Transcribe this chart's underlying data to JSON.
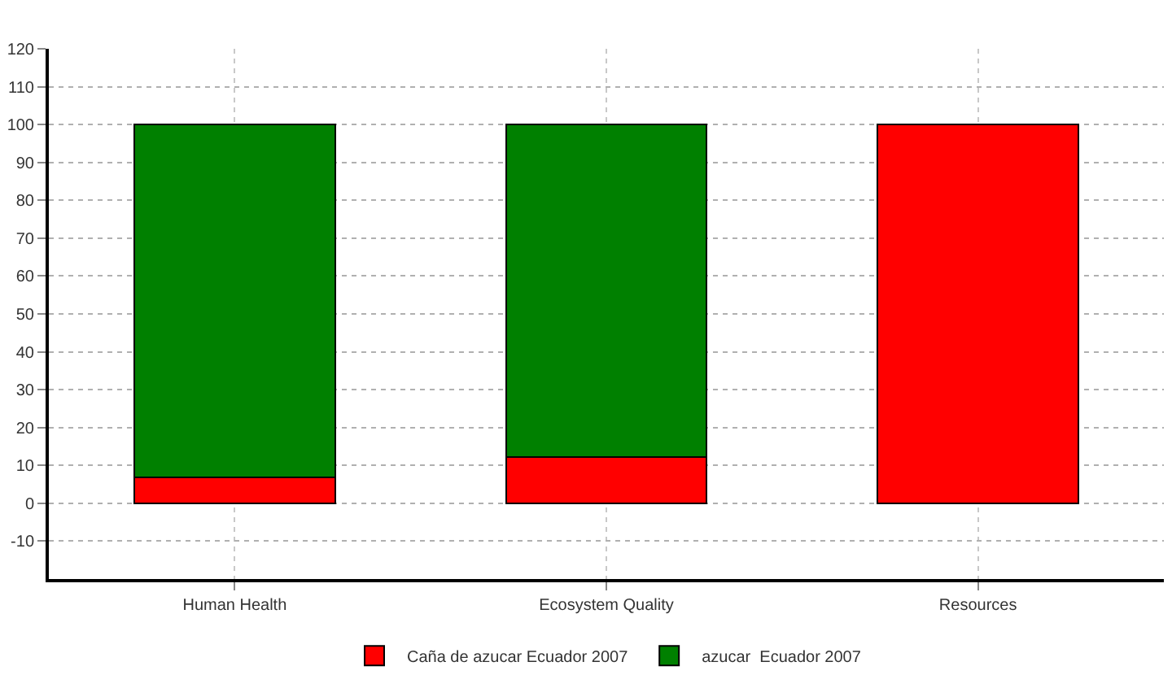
{
  "chart_data": {
    "type": "bar",
    "stacked": true,
    "categories": [
      "Human Health",
      "Ecosystem Quality",
      "Resources"
    ],
    "series": [
      {
        "name": "Caña de azucar Ecuador 2007",
        "color": "#ff0000",
        "values": [
          6.8,
          12.3,
          100
        ]
      },
      {
        "name": "azucar  Ecuador 2007",
        "color": "#008000",
        "values": [
          93.2,
          87.7,
          0
        ]
      }
    ],
    "ylim": [
      -20,
      120
    ],
    "yticks": [
      -10,
      0,
      10,
      20,
      30,
      40,
      50,
      60,
      70,
      80,
      90,
      100,
      110,
      120
    ],
    "grid": true,
    "legend": "bottom"
  }
}
